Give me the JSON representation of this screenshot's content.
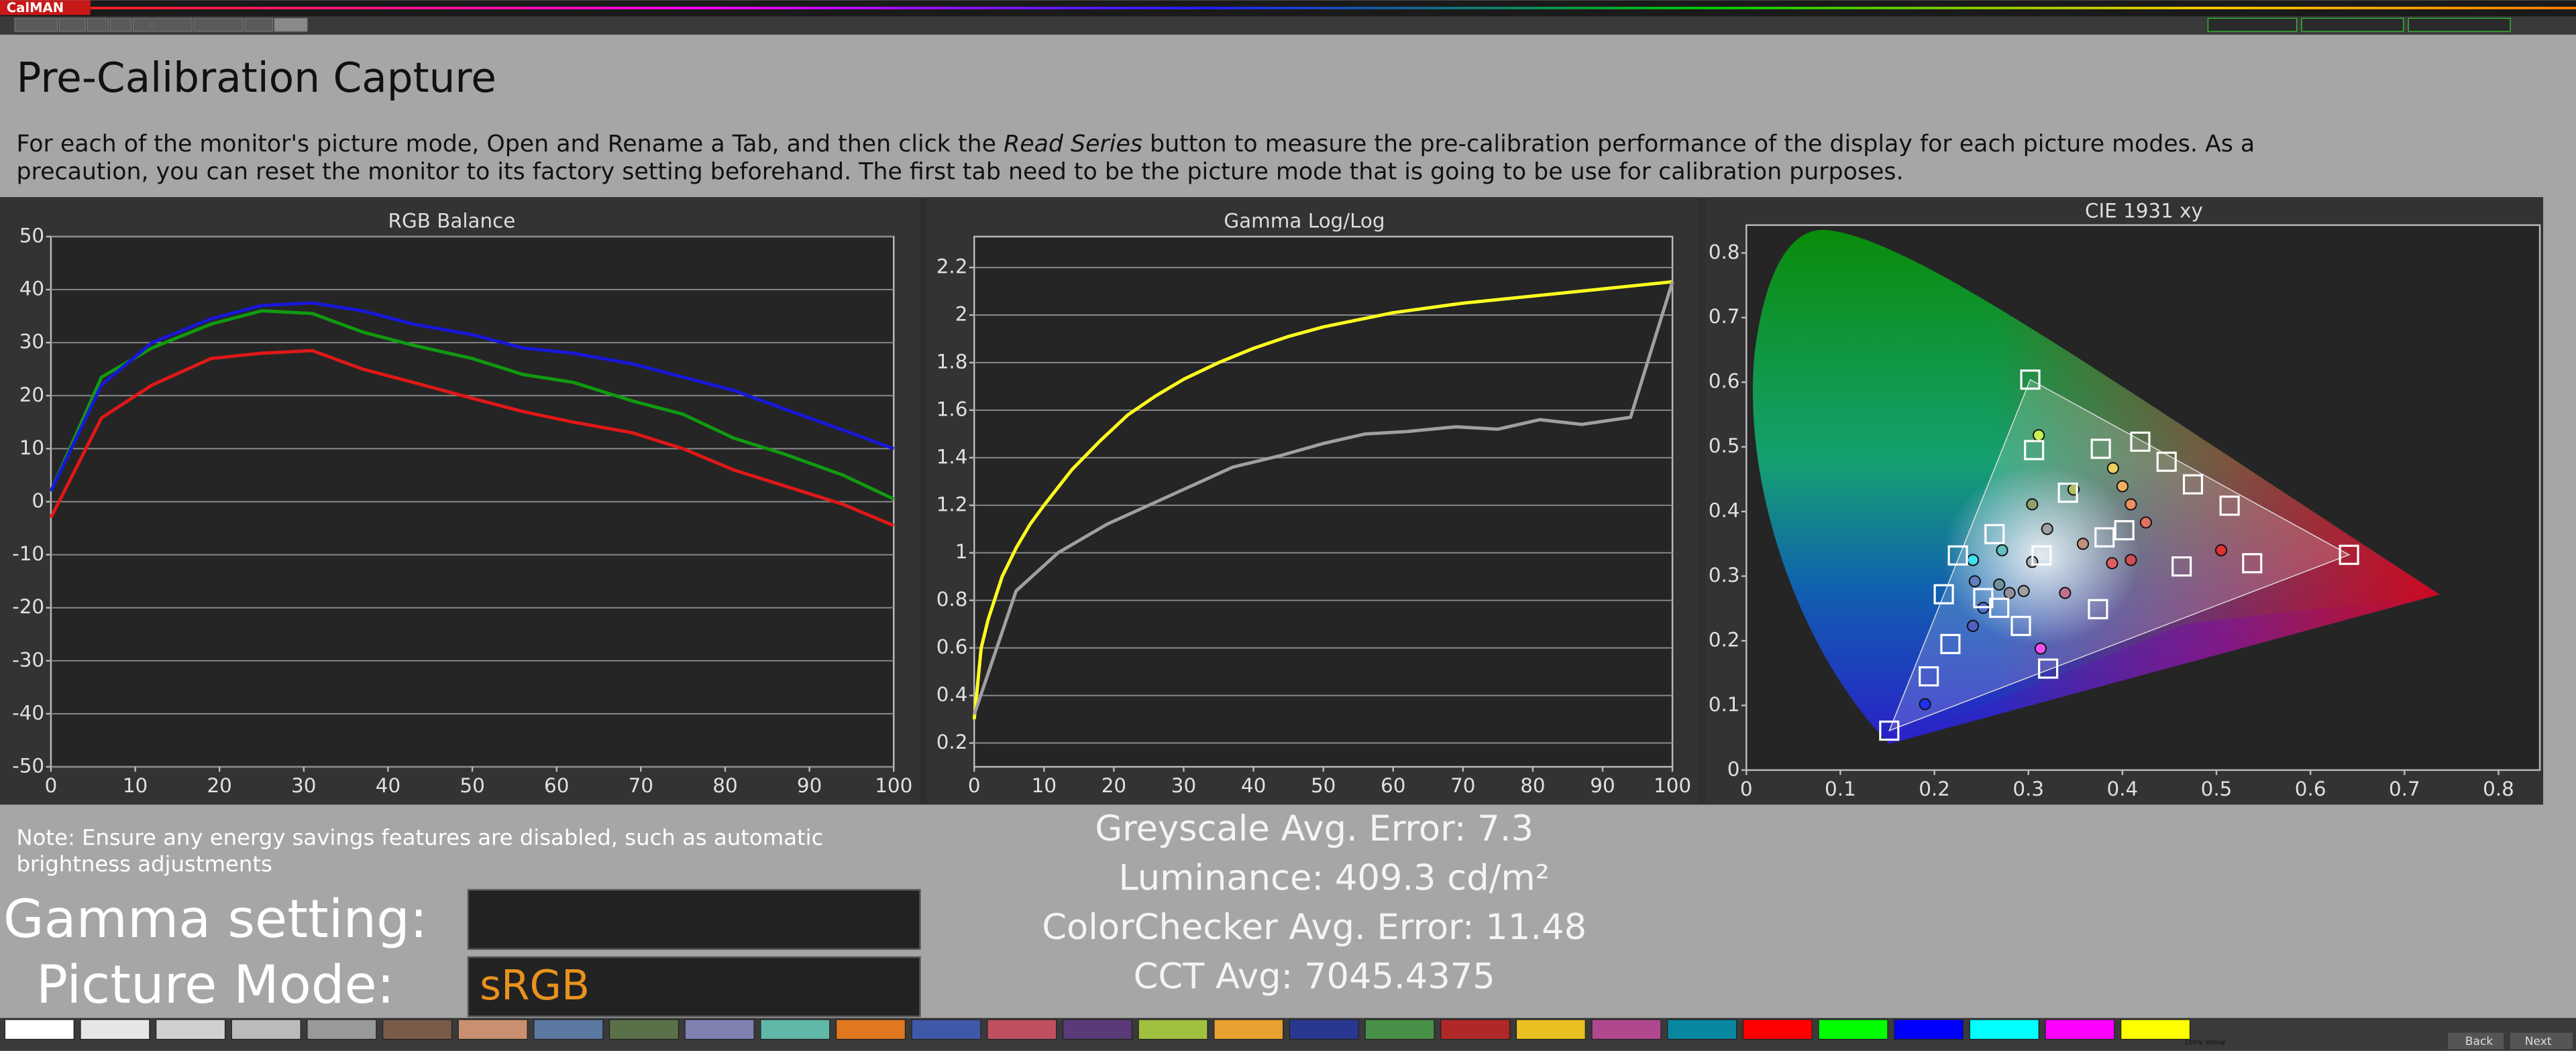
{
  "app": {
    "name": "CalMAN",
    "back": "Back",
    "next": "Next",
    "swatch_label": "100% Yellow"
  },
  "header": {
    "title": "Pre-Calibration Capture",
    "instructions": {
      "before": "For each of the monitor's picture mode, Open and Rename a Tab, and then click the ",
      "emphasis": "Read Series",
      "after": " button to measure the pre-calibration performance of the display for each picture modes. As a",
      "continued": "precaution, you can reset the monitor to its factory setting beforehand. The first tab need to be the picture mode that is going to be use for calibration purposes."
    }
  },
  "note": [
    "Note: Ensure any energy savings features are disabled, such as automatic",
    "brightness adjustments"
  ],
  "settings": {
    "gamma_label": "Gamma setting:",
    "mode_label": "Picture Mode:",
    "mode_value": "sRGB"
  },
  "stats": [
    "Greyscale Avg. Error: 7.3",
    "Luminance: 409.3 cd/m²",
    "ColorChecker Avg. Error: 11.48",
    "CCT Avg: 7045.4375"
  ],
  "chart_data": [
    {
      "type": "line",
      "title": "RGB Balance",
      "xlim": [
        0,
        100
      ],
      "ylim": [
        -50,
        50
      ],
      "xticks": [
        0,
        10,
        20,
        30,
        40,
        50,
        60,
        70,
        80,
        90,
        100
      ],
      "yticks": [
        -50,
        -40,
        -30,
        -20,
        -10,
        0,
        10,
        20,
        30,
        40,
        50
      ],
      "grid": true,
      "x": [
        0,
        6,
        12,
        19,
        25,
        31,
        37,
        43,
        50,
        56,
        62,
        69,
        75,
        81,
        87,
        94,
        100
      ],
      "series": [
        {
          "color": "#e01818",
          "values": [
            -3,
            15.8,
            22,
            27,
            28,
            28.5,
            25,
            22.5,
            19.5,
            17,
            15,
            13,
            10,
            6,
            3,
            -0.5,
            -4.5
          ]
        },
        {
          "color": "#109a10",
          "values": [
            2,
            23.5,
            29,
            33.5,
            36,
            35.5,
            32,
            29.5,
            27,
            24,
            22.5,
            19,
            16.5,
            12,
            9,
            5,
            0.5
          ]
        },
        {
          "color": "#1818d8",
          "values": [
            2,
            22,
            30,
            34.5,
            37,
            37.5,
            36,
            33.5,
            31.5,
            29,
            28,
            26,
            23.5,
            21,
            17.5,
            13.5,
            10
          ]
        }
      ]
    },
    {
      "type": "line",
      "title": "Gamma Log/Log",
      "xlim": [
        0,
        100
      ],
      "ylim": [
        0.1,
        2.33
      ],
      "xticks": [
        0,
        10,
        20,
        30,
        40,
        50,
        60,
        70,
        80,
        90,
        100
      ],
      "yticks": [
        0.2,
        0.4,
        0.6,
        0.8,
        1,
        1.2,
        1.4,
        1.6,
        1.8,
        2,
        2.2
      ],
      "grid": true,
      "series": [
        {
          "color": "#ffff20",
          "x": [
            0,
            1,
            2,
            4,
            6,
            8,
            10,
            14,
            18,
            22,
            26,
            30,
            35,
            40,
            45,
            50,
            60,
            70,
            80,
            90,
            100
          ],
          "values": [
            0.3,
            0.6,
            0.72,
            0.9,
            1.02,
            1.12,
            1.2,
            1.35,
            1.47,
            1.58,
            1.66,
            1.73,
            1.8,
            1.86,
            1.91,
            1.95,
            2.01,
            2.05,
            2.08,
            2.11,
            2.14
          ]
        },
        {
          "color": "#a0a0a0",
          "x": [
            0,
            6,
            12,
            19,
            25,
            31,
            37,
            44,
            50,
            56,
            62,
            69,
            75,
            81,
            87,
            94,
            100
          ],
          "values": [
            0.32,
            0.84,
            1.0,
            1.12,
            1.2,
            1.28,
            1.36,
            1.41,
            1.46,
            1.5,
            1.51,
            1.53,
            1.52,
            1.56,
            1.54,
            1.57,
            2.14
          ]
        }
      ]
    },
    {
      "type": "scatter",
      "title": "CIE 1931 xy",
      "xlim": [
        0,
        0.844
      ],
      "ylim": [
        0,
        0.843
      ],
      "xticks": [
        0,
        0.1,
        0.2,
        0.3,
        0.4,
        0.5,
        0.6,
        0.7,
        0.8
      ],
      "yticks": [
        0,
        0.1,
        0.2,
        0.3,
        0.4,
        0.5,
        0.6,
        0.7,
        0.8
      ],
      "grid": false,
      "targets": {
        "color": "#ffffff",
        "x": [
          0.302,
          0.641,
          0.152,
          0.314,
          0.306,
          0.377,
          0.419,
          0.447,
          0.475,
          0.514,
          0.538,
          0.463,
          0.402,
          0.381,
          0.342,
          0.264,
          0.225,
          0.21,
          0.252,
          0.269,
          0.292,
          0.217,
          0.194,
          0.321,
          0.374
        ],
        "y": [
          0.604,
          0.333,
          0.061,
          0.332,
          0.495,
          0.497,
          0.508,
          0.477,
          0.442,
          0.409,
          0.32,
          0.315,
          0.371,
          0.36,
          0.429,
          0.365,
          0.332,
          0.272,
          0.266,
          0.251,
          0.223,
          0.195,
          0.145,
          0.157,
          0.249
        ]
      },
      "measured": {
        "x": [
          0.311,
          0.348,
          0.304,
          0.39,
          0.4,
          0.409,
          0.425,
          0.32,
          0.358,
          0.389,
          0.409,
          0.505,
          0.272,
          0.241,
          0.243,
          0.269,
          0.28,
          0.295,
          0.339,
          0.252,
          0.241,
          0.313,
          0.19,
          0.304
        ],
        "y": [
          0.518,
          0.434,
          0.411,
          0.467,
          0.439,
          0.411,
          0.383,
          0.373,
          0.35,
          0.32,
          0.325,
          0.34,
          0.34,
          0.325,
          0.292,
          0.287,
          0.274,
          0.277,
          0.274,
          0.251,
          0.223,
          0.188,
          0.102,
          0.322
        ],
        "colors": [
          "#c8f050",
          "#b0c060",
          "#90a070",
          "#e8d060",
          "#f0b060",
          "#f09060",
          "#e07060",
          "#a0a0a0",
          "#c09080",
          "#e06060",
          "#d05050",
          "#e03030",
          "#60c0c0",
          "#40e0f0",
          "#6080c0",
          "#7090a0",
          "#9090a0",
          "#a0a0a0",
          "#c07090",
          "#5070d0",
          "#5060c0",
          "#f050f0",
          "#2030f0",
          "#b0b0b0"
        ]
      }
    }
  ]
}
